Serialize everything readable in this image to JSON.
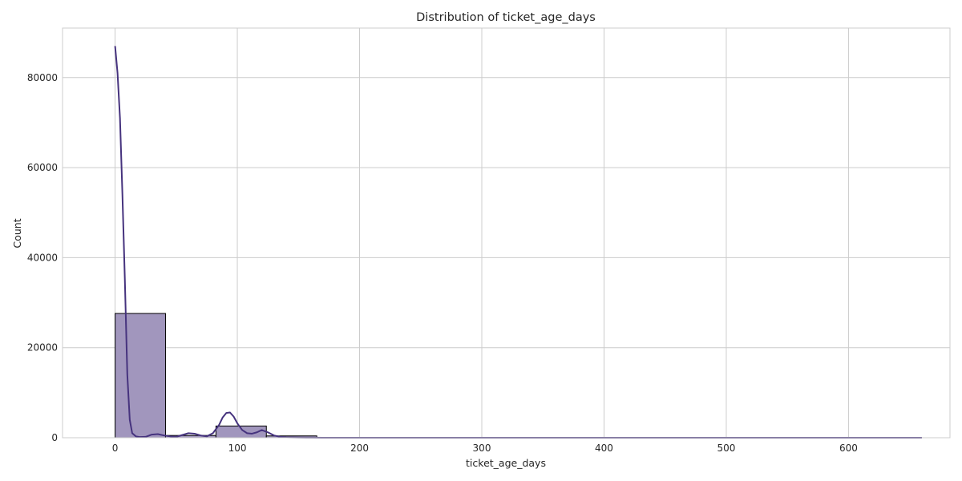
{
  "chart_data": {
    "type": "histogram",
    "title": "Distribution of ticket_age_days",
    "xlabel": "ticket_age_days",
    "ylabel": "Count",
    "xlim": [
      -43,
      683
    ],
    "ylim": [
      0,
      91000
    ],
    "xticks": [
      0,
      100,
      200,
      300,
      400,
      500,
      600
    ],
    "yticks": [
      0,
      20000,
      40000,
      60000,
      80000
    ],
    "grid": true,
    "bin_edges": [
      0,
      41.25,
      82.5,
      123.75,
      165,
      206.25,
      247.5,
      288.75,
      330,
      371.25,
      412.5,
      453.75,
      495,
      536.25,
      577.5,
      618.75,
      660
    ],
    "counts": [
      27600,
      500,
      2600,
      400,
      60,
      30,
      20,
      10,
      10,
      5,
      5,
      5,
      5,
      5,
      5,
      5
    ],
    "kde": {
      "x": [
        0,
        2,
        4,
        6,
        8,
        10,
        12,
        14,
        17,
        20,
        25,
        30,
        35,
        40,
        45,
        50,
        55,
        60,
        65,
        70,
        75,
        80,
        85,
        88,
        91,
        94,
        97,
        100,
        104,
        108,
        112,
        116,
        120,
        125,
        130,
        135,
        140,
        150,
        160,
        170,
        180,
        200,
        300,
        400,
        500,
        600,
        660
      ],
      "y": [
        87000,
        81000,
        71000,
        54000,
        35000,
        14000,
        4000,
        1000,
        300,
        150,
        200,
        700,
        800,
        500,
        300,
        200,
        600,
        1000,
        900,
        500,
        300,
        1000,
        2800,
        4500,
        5500,
        5600,
        4700,
        3200,
        1700,
        1000,
        900,
        1200,
        1700,
        1200,
        500,
        200,
        80,
        40,
        20,
        10,
        5,
        5,
        5,
        5,
        5,
        5,
        5
      ]
    },
    "colors": {
      "bar_fill": "#a196bd",
      "bar_edge": "#000000",
      "kde_line": "#46337e",
      "grid": "#cccccc",
      "spine": "#cccccc"
    }
  }
}
